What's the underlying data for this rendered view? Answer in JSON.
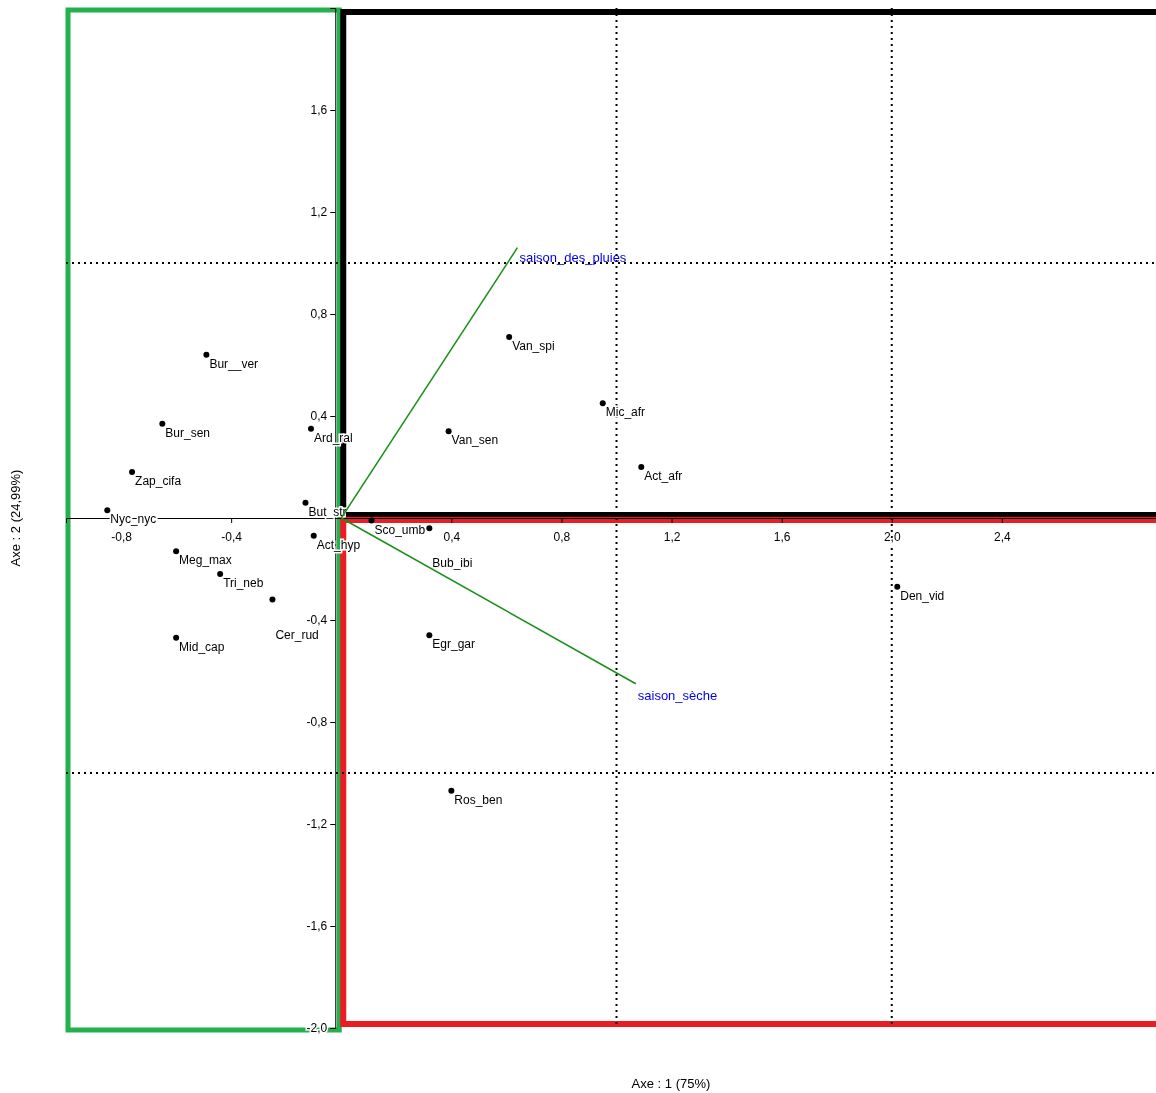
{
  "chart_data": {
    "type": "scatter",
    "xlabel": "Axe : 1 (75%)",
    "ylabel": "Axe : 2 (24,99%)",
    "xlim": [
      -1.0,
      2.96
    ],
    "ylim": [
      -2.0,
      2.0
    ],
    "xticks": [
      {
        "value": -0.8,
        "label": "-0,8"
      },
      {
        "value": -0.4,
        "label": "-0,4"
      },
      {
        "value": 0.4,
        "label": "0,4"
      },
      {
        "value": 0.8,
        "label": "0,8"
      },
      {
        "value": 1.2,
        "label": "1,2"
      },
      {
        "value": 1.6,
        "label": "1,6"
      },
      {
        "value": 2.0,
        "label": "2,0"
      },
      {
        "value": 2.4,
        "label": "2,4"
      }
    ],
    "yticks": [
      {
        "value": 1.6,
        "label": "1,6"
      },
      {
        "value": 1.2,
        "label": "1,2"
      },
      {
        "value": 0.8,
        "label": "0,8"
      },
      {
        "value": 0.4,
        "label": "0,4"
      },
      {
        "value": -0.4,
        "label": "-0,4"
      },
      {
        "value": -0.8,
        "label": "-0,8"
      },
      {
        "value": -1.2,
        "label": "-1,2"
      },
      {
        "value": -1.6,
        "label": "-1,6"
      },
      {
        "value": -2.0,
        "label": "-2,0"
      }
    ],
    "series": [
      {
        "marker": "circle",
        "color": "#000000",
        "x": [
          -0.49,
          -0.65,
          -0.76,
          -0.85,
          -0.11,
          -0.13,
          -0.1,
          -0.6,
          -0.44,
          -0.25,
          -0.6,
          0.11,
          0.32,
          0.32,
          0.4,
          0.61,
          0.39,
          0.95,
          1.09,
          2.02
        ],
        "values": [
          0.64,
          0.37,
          0.18,
          0.03,
          0.35,
          0.06,
          -0.07,
          -0.13,
          -0.22,
          -0.32,
          -0.47,
          -0.01,
          -0.04,
          -0.46,
          -1.07,
          0.71,
          0.34,
          0.45,
          0.2,
          -0.27
        ],
        "value_labels": [
          "Bur__ver",
          "Bur_sen",
          "Zap_cifa",
          "Nyc_nyc",
          "Ard_ral",
          "But_str",
          "Act_hyp",
          "Meg_max",
          "Tri_neb",
          "Cer_rud",
          "Mid_cap",
          "Sco_umb",
          "Bub_ibi",
          "Egr_gar",
          "Ros_ben",
          "Van_spi",
          "Van_sen",
          "Mic_afr",
          "Act_afr",
          "Den_vid"
        ]
      },
      {
        "type": "line",
        "color": "#1a8f1a",
        "x": [
          0,
          0.64
        ],
        "values": [
          0,
          1.06
        ]
      },
      {
        "type": "line",
        "color": "#1a8f1a",
        "x": [
          0,
          1.07
        ],
        "values": [
          0,
          -0.65
        ]
      }
    ],
    "annotations": [
      {
        "text": "saison_des_pluies",
        "x": 0.64,
        "y": 1.06
      },
      {
        "text": "saison_sèche",
        "x": 1.07,
        "y": -0.65
      }
    ],
    "ref_lines": [
      {
        "axis": "x",
        "value": 1.0,
        "line_style": "dotted"
      },
      {
        "axis": "x",
        "value": 2.0,
        "line_style": "dotted"
      },
      {
        "axis": "y",
        "value": 1.0,
        "line_style": "dotted"
      },
      {
        "axis": "y",
        "value": -1.0,
        "line_style": "dotted"
      }
    ]
  }
}
